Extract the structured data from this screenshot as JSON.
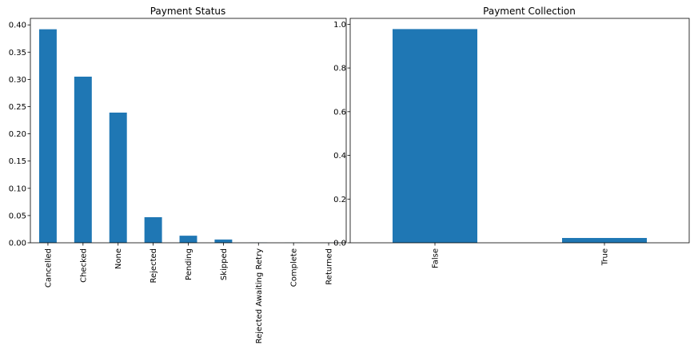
{
  "chart_data": [
    {
      "type": "bar",
      "title": "Payment Status",
      "xlabel": "",
      "ylabel": "",
      "categories": [
        "Cancelled",
        "Checked",
        "None",
        "Rejected",
        "Pending",
        "Skipped",
        "Rejected Awaiting Retry",
        "Complete",
        "Returned"
      ],
      "values": [
        0.392,
        0.305,
        0.239,
        0.047,
        0.013,
        0.006,
        0.0003,
        0.0002,
        0.0001
      ],
      "ylim": [
        0,
        0.412
      ],
      "yticks": [
        "0.00",
        "0.05",
        "0.10",
        "0.15",
        "0.20",
        "0.25",
        "0.30",
        "0.35",
        "0.40"
      ],
      "grid": false,
      "legend": "none",
      "color": "#1f77b4"
    },
    {
      "type": "bar",
      "title": "Payment Collection",
      "xlabel": "",
      "ylabel": "",
      "categories": [
        "False",
        "True"
      ],
      "values": [
        0.978,
        0.022
      ],
      "ylim": [
        0,
        1.027
      ],
      "yticks": [
        "0.0",
        "0.2",
        "0.4",
        "0.6",
        "0.8",
        "1.0"
      ],
      "grid": false,
      "legend": "none",
      "color": "#1f77b4"
    }
  ]
}
